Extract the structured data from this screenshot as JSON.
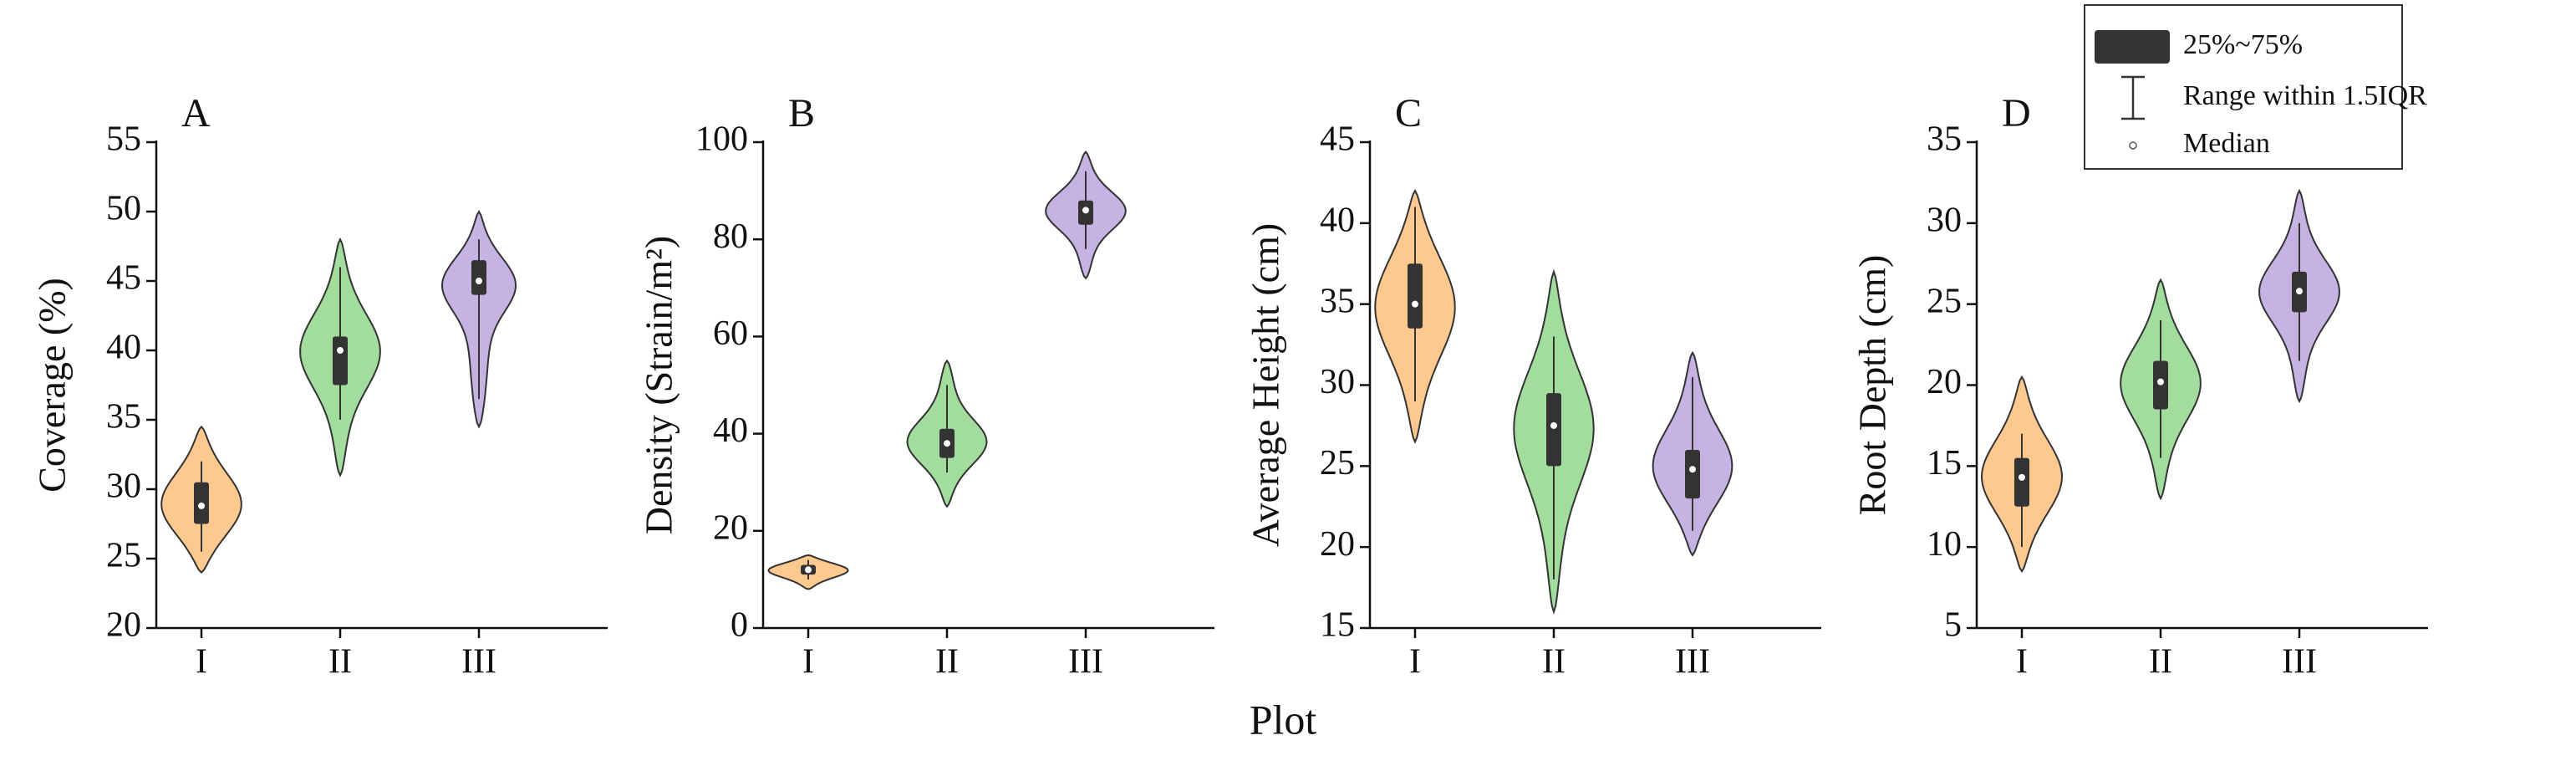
{
  "x_label": "Plot",
  "legend": {
    "box": "25%~75%",
    "whisker": "Range within 1.5IQR",
    "median": "Median"
  },
  "chart_data": [
    {
      "type": "violin",
      "panel": "A",
      "y_label": "Coverage (%)",
      "categories": [
        "I",
        "II",
        "III"
      ],
      "colors": [
        "#fdc98f",
        "#a3dd9e",
        "#c5b3e3"
      ],
      "low": [
        24,
        31,
        34.5
      ],
      "high": [
        34.5,
        48,
        50
      ],
      "whisker_low": [
        25.5,
        35,
        36.5
      ],
      "whisker_high": [
        32,
        46,
        48
      ],
      "q1": [
        27.5,
        37.5,
        44
      ],
      "median": [
        28.8,
        40,
        45
      ],
      "q3": [
        30.5,
        41,
        46.5
      ],
      "ylim": [
        20,
        55
      ],
      "yticks": [
        20,
        25,
        30,
        35,
        40,
        45,
        50,
        55
      ]
    },
    {
      "type": "violin",
      "panel": "B",
      "y_label": "Density (Strain/m²)",
      "categories": [
        "I",
        "II",
        "III"
      ],
      "colors": [
        "#fdc98f",
        "#a3dd9e",
        "#c5b3e3"
      ],
      "low": [
        8,
        25,
        72
      ],
      "high": [
        15,
        55,
        98
      ],
      "whisker_low": [
        10,
        32,
        78
      ],
      "whisker_high": [
        14,
        50,
        94
      ],
      "q1": [
        11,
        35,
        83
      ],
      "median": [
        12,
        38,
        86
      ],
      "q3": [
        13,
        41,
        88
      ],
      "ylim": [
        0,
        100
      ],
      "yticks": [
        0,
        20,
        40,
        60,
        80,
        100
      ]
    },
    {
      "type": "violin",
      "panel": "C",
      "y_label": "Average Height (cm)",
      "categories": [
        "I",
        "II",
        "III"
      ],
      "colors": [
        "#fdc98f",
        "#a3dd9e",
        "#c5b3e3"
      ],
      "low": [
        26.5,
        16,
        19.5
      ],
      "high": [
        42,
        37,
        32
      ],
      "whisker_low": [
        29,
        18,
        21
      ],
      "whisker_high": [
        41,
        33,
        30.5
      ],
      "q1": [
        33.5,
        25,
        23
      ],
      "median": [
        35,
        27.5,
        24.8
      ],
      "q3": [
        37.5,
        29.5,
        26
      ],
      "ylim": [
        15,
        45
      ],
      "yticks": [
        15,
        20,
        25,
        30,
        35,
        40,
        45
      ]
    },
    {
      "type": "violin",
      "panel": "D",
      "y_label": "Root Depth (cm)",
      "categories": [
        "I",
        "II",
        "III"
      ],
      "colors": [
        "#fdc98f",
        "#a3dd9e",
        "#c5b3e3"
      ],
      "low": [
        8.5,
        13,
        19
      ],
      "high": [
        20.5,
        26.5,
        32
      ],
      "whisker_low": [
        10,
        15.5,
        21.5
      ],
      "whisker_high": [
        17,
        24,
        30
      ],
      "q1": [
        12.5,
        18.5,
        24.5
      ],
      "median": [
        14.3,
        20.2,
        25.8
      ],
      "q3": [
        15.5,
        21.5,
        27
      ],
      "ylim": [
        5,
        35
      ],
      "yticks": [
        5,
        10,
        15,
        20,
        25,
        30,
        35
      ]
    }
  ]
}
